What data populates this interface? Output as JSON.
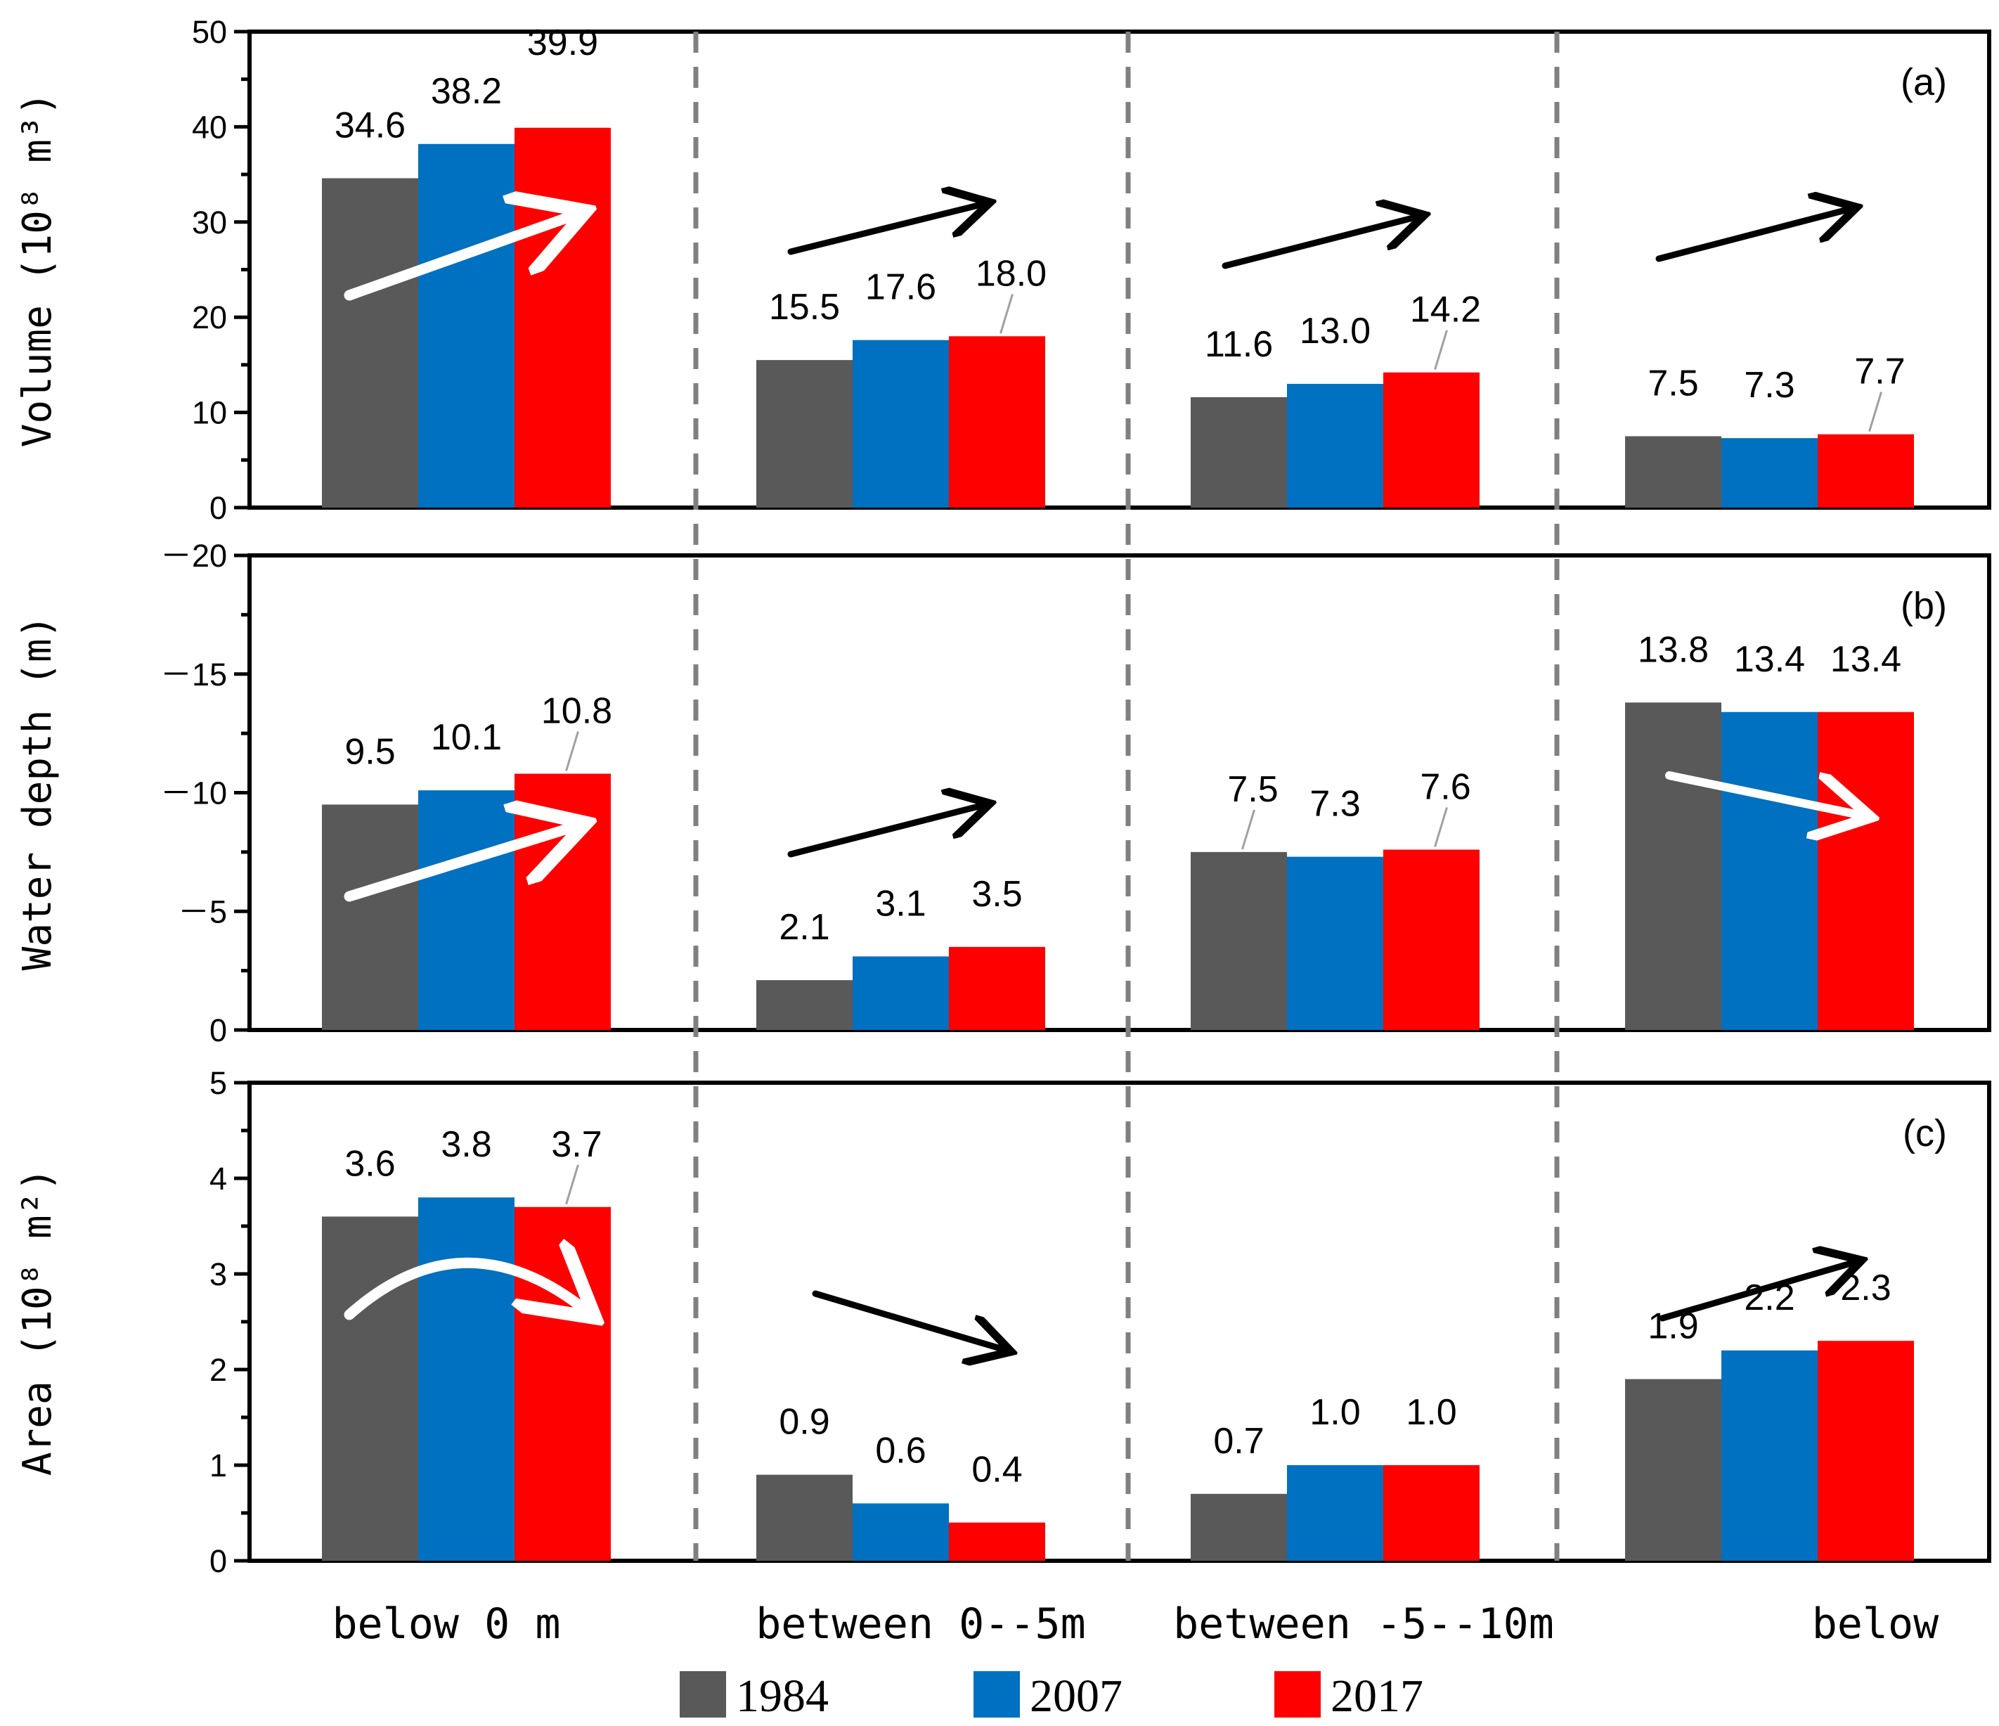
{
  "chart_data": {
    "type": "bar",
    "categories": [
      "below 0 m",
      "between 0--5m",
      "between -5--10m",
      "below"
    ],
    "legend": [
      {
        "year": "1984",
        "color": "#595959"
      },
      {
        "year": "2007",
        "color": "#0070c0"
      },
      {
        "year": "2017",
        "color": "#ff0000"
      }
    ],
    "panels": [
      {
        "id": "a",
        "tag": "(a)",
        "ylabel": "Volume (10⁸ m³)",
        "ylim": [
          0,
          50
        ],
        "yticks": [
          0,
          10,
          20,
          30,
          40,
          50
        ],
        "ytick_labels": [
          "0",
          "10",
          "20",
          "30",
          "40",
          "50"
        ],
        "series": [
          {
            "name": "1984",
            "values": [
              34.6,
              15.5,
              11.6,
              7.5
            ],
            "labels": [
              "34.6",
              "15.5",
              "11.6",
              "7.5"
            ]
          },
          {
            "name": "2007",
            "values": [
              38.2,
              17.6,
              13.0,
              7.3
            ],
            "labels": [
              "38.2",
              "17.6",
              "13.0",
              "7.3"
            ]
          },
          {
            "name": "2017",
            "values": [
              39.9,
              18.0,
              14.2,
              7.7
            ],
            "labels": [
              "39.9",
              "18.0",
              "14.2",
              "7.7"
            ]
          }
        ],
        "trend_arrows": [
          {
            "category": "below 0 m",
            "direction": "up",
            "color": "white"
          },
          {
            "category": "between 0--5m",
            "direction": "up",
            "color": "black"
          },
          {
            "category": "between -5--10m",
            "direction": "up",
            "color": "black"
          },
          {
            "category": "below",
            "direction": "up",
            "color": "black"
          }
        ]
      },
      {
        "id": "b",
        "tag": "(b)",
        "ylabel": "Water depth (m)",
        "ylim": [
          0,
          20
        ],
        "yticks": [
          0,
          5,
          10,
          15,
          20
        ],
        "ytick_labels": [
          "0",
          "－5",
          "－10",
          "－15",
          "－20"
        ],
        "series": [
          {
            "name": "1984",
            "values": [
              9.5,
              2.1,
              7.5,
              13.8
            ],
            "labels": [
              "9.5",
              "2.1",
              "7.5",
              "13.8"
            ]
          },
          {
            "name": "2007",
            "values": [
              10.1,
              3.1,
              7.3,
              13.4
            ],
            "labels": [
              "10.1",
              "3.1",
              "7.3",
              "13.4"
            ]
          },
          {
            "name": "2017",
            "values": [
              10.8,
              3.5,
              7.6,
              13.4
            ],
            "labels": [
              "10.8",
              "3.5",
              "7.6",
              "13.4"
            ]
          }
        ],
        "trend_arrows": [
          {
            "category": "below 0 m",
            "direction": "up",
            "color": "white"
          },
          {
            "category": "between 0--5m",
            "direction": "up",
            "color": "black"
          },
          {
            "category": "below",
            "direction": "down",
            "color": "white"
          }
        ]
      },
      {
        "id": "c",
        "tag": "(c)",
        "ylabel": "Area (10⁸ m²)",
        "ylim": [
          0,
          5
        ],
        "yticks": [
          0,
          1,
          2,
          3,
          4,
          5
        ],
        "ytick_labels": [
          "0",
          "1",
          "2",
          "3",
          "4",
          "5"
        ],
        "series": [
          {
            "name": "1984",
            "values": [
              3.6,
              0.9,
              0.7,
              1.9
            ],
            "labels": [
              "3.6",
              "0.9",
              "0.7",
              "1.9"
            ]
          },
          {
            "name": "2007",
            "values": [
              3.8,
              0.6,
              1.0,
              2.2
            ],
            "labels": [
              "3.8",
              "0.6",
              "1.0",
              "2.2"
            ]
          },
          {
            "name": "2017",
            "values": [
              3.7,
              0.4,
              1.0,
              2.3
            ],
            "labels": [
              "3.7",
              "0.4",
              "1.0",
              "2.3"
            ]
          }
        ],
        "trend_arrows": [
          {
            "category": "below 0 m",
            "direction": "rise-then-fall",
            "color": "white"
          },
          {
            "category": "between 0--5m",
            "direction": "down",
            "color": "black"
          },
          {
            "category": "below",
            "direction": "up",
            "color": "black"
          }
        ]
      }
    ]
  }
}
